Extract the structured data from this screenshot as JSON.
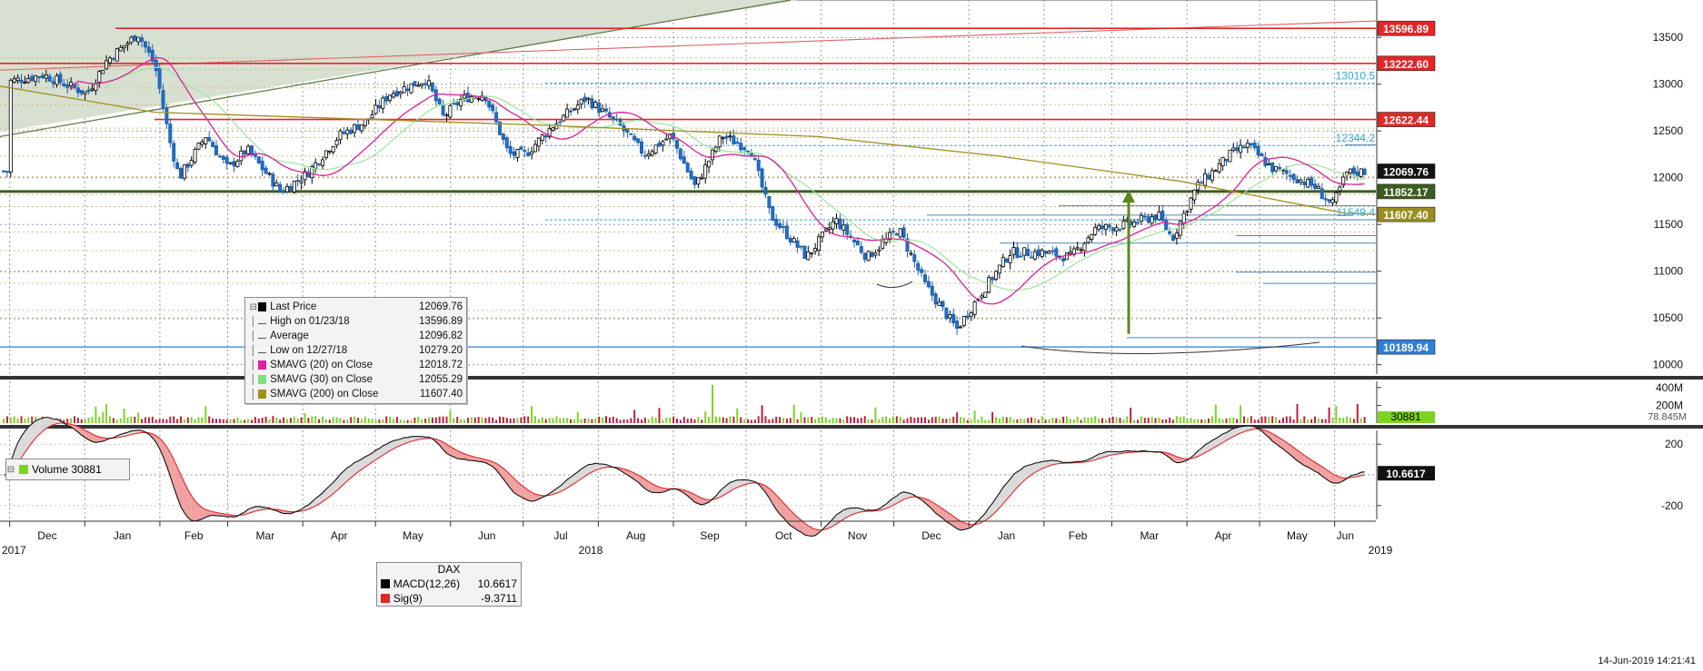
{
  "chart_data": [
    {
      "type": "candlestick",
      "instrument": "DAX",
      "ylim": [
        9900,
        13900
      ],
      "y_ticks": [
        10000,
        10500,
        11000,
        11500,
        12000,
        12500,
        13000,
        13500
      ],
      "grid": true,
      "x_axis": {
        "months": [
          "Dec",
          "Jan",
          "Feb",
          "Mar",
          "Apr",
          "May",
          "Jun",
          "Jul",
          "Aug",
          "Sep",
          "Oct",
          "Nov",
          "Dec",
          "Jan",
          "Feb",
          "Mar",
          "Apr",
          "May",
          "Jun"
        ],
        "years": [
          "2017",
          "2018",
          "2019"
        ]
      },
      "close_path": [
        [
          "2017-12-01",
          13030
        ],
        [
          "2017-12-15",
          13100
        ],
        [
          "2018-01-02",
          12900
        ],
        [
          "2018-01-10",
          13250
        ],
        [
          "2018-01-23",
          13540
        ],
        [
          "2018-01-30",
          13200
        ],
        [
          "2018-02-05",
          12400
        ],
        [
          "2018-02-09",
          12000
        ],
        [
          "2018-02-20",
          12450
        ],
        [
          "2018-03-01",
          12100
        ],
        [
          "2018-03-09",
          12300
        ],
        [
          "2018-03-23",
          11850
        ],
        [
          "2018-04-03",
          12050
        ],
        [
          "2018-04-16",
          12450
        ],
        [
          "2018-04-27",
          12600
        ],
        [
          "2018-05-07",
          12900
        ],
        [
          "2018-05-22",
          13050
        ],
        [
          "2018-05-29",
          12650
        ],
        [
          "2018-06-06",
          12850
        ],
        [
          "2018-06-15",
          12900
        ],
        [
          "2018-06-25",
          12250
        ],
        [
          "2018-07-02",
          12250
        ],
        [
          "2018-07-13",
          12550
        ],
        [
          "2018-07-27",
          12850
        ],
        [
          "2018-08-10",
          12550
        ],
        [
          "2018-08-20",
          12250
        ],
        [
          "2018-08-31",
          12450
        ],
        [
          "2018-09-10",
          11900
        ],
        [
          "2018-09-21",
          12450
        ],
        [
          "2018-10-03",
          12300
        ],
        [
          "2018-10-11",
          11600
        ],
        [
          "2018-10-26",
          11150
        ],
        [
          "2018-11-07",
          11550
        ],
        [
          "2018-11-20",
          11150
        ],
        [
          "2018-12-03",
          11450
        ],
        [
          "2018-12-14",
          10850
        ],
        [
          "2018-12-27",
          10380
        ],
        [
          "2019-01-07",
          10800
        ],
        [
          "2019-01-18",
          11200
        ],
        [
          "2019-01-31",
          11200
        ],
        [
          "2019-02-12",
          11150
        ],
        [
          "2019-02-22",
          11450
        ],
        [
          "2019-03-08",
          11500
        ],
        [
          "2019-03-20",
          11600
        ],
        [
          "2019-03-26",
          11350
        ],
        [
          "2019-04-05",
          11900
        ],
        [
          "2019-04-19",
          12250
        ],
        [
          "2019-04-26",
          12350
        ],
        [
          "2019-05-06",
          12100
        ],
        [
          "2019-05-16",
          12000
        ],
        [
          "2019-05-24",
          11900
        ],
        [
          "2019-05-31",
          11700
        ],
        [
          "2019-06-06",
          12050
        ],
        [
          "2019-06-14",
          12069.76
        ]
      ],
      "horizontal_levels": [
        {
          "label": "13596.89",
          "value": 13596.89,
          "color": "#e32626"
        },
        {
          "label": "13222.60",
          "value": 13222.6,
          "color": "#e32626"
        },
        {
          "label": "13010.5",
          "value": 13010.5,
          "color": "#2fa9d8"
        },
        {
          "label": "12622.44",
          "value": 12622.44,
          "color": "#e32626"
        },
        {
          "label": "12344.2",
          "value": 12344.2,
          "color": "#2fa9d8"
        },
        {
          "label": "12069.76",
          "value": 12069.76,
          "color": "#111111"
        },
        {
          "label": "11852.17",
          "value": 11852.17,
          "color": "#3c5d1e"
        },
        {
          "label": "11607.40",
          "value": 11607.4,
          "color": "#9a8e20"
        },
        {
          "label": "11549.4",
          "value": 11549.4,
          "color": "#2fa9d8"
        },
        {
          "label": "10189.94",
          "value": 10189.94,
          "color": "#2f7fd8"
        }
      ],
      "legend": [
        {
          "label": "Last Price",
          "value": "12069.76",
          "color": "#000000"
        },
        {
          "label": "High on 01/23/18",
          "value": "13596.89",
          "color": "#555555"
        },
        {
          "label": "Average",
          "value": "12096.82",
          "color": "#555555"
        },
        {
          "label": "Low on 12/27/18",
          "value": "10279.20",
          "color": "#555555"
        },
        {
          "label": "SMAVG (20)  on Close",
          "value": "12018.72",
          "color": "#e0219e"
        },
        {
          "label": "SMAVG (30)  on Close",
          "value": "12055.29",
          "color": "#7fe07f"
        },
        {
          "label": "SMAVG (200)  on Close",
          "value": "11607.40",
          "color": "#a09020"
        }
      ]
    },
    {
      "type": "bar",
      "name": "Volume",
      "legend_label": "Volume",
      "legend_value": "30881",
      "y_ticks": [
        "400M",
        "200M"
      ],
      "overlay_label": "78.845M",
      "last_value": "30881",
      "colors": {
        "up": "#7ed321",
        "down": "#c0203a"
      }
    },
    {
      "type": "line",
      "name": "MACD",
      "y_ticks": [
        200,
        -200
      ],
      "ylim": [
        -290,
        290
      ],
      "legend_title": "DAX",
      "legend": [
        {
          "label": "MACD(12,26)",
          "value": "10.6617",
          "color": "#000000"
        },
        {
          "label": "Sig(9)",
          "value": "-9.3711",
          "color": "#e32626"
        }
      ],
      "last_value": "10.6617"
    }
  ],
  "timestamp": "14-Jun-2019 14:21:41"
}
